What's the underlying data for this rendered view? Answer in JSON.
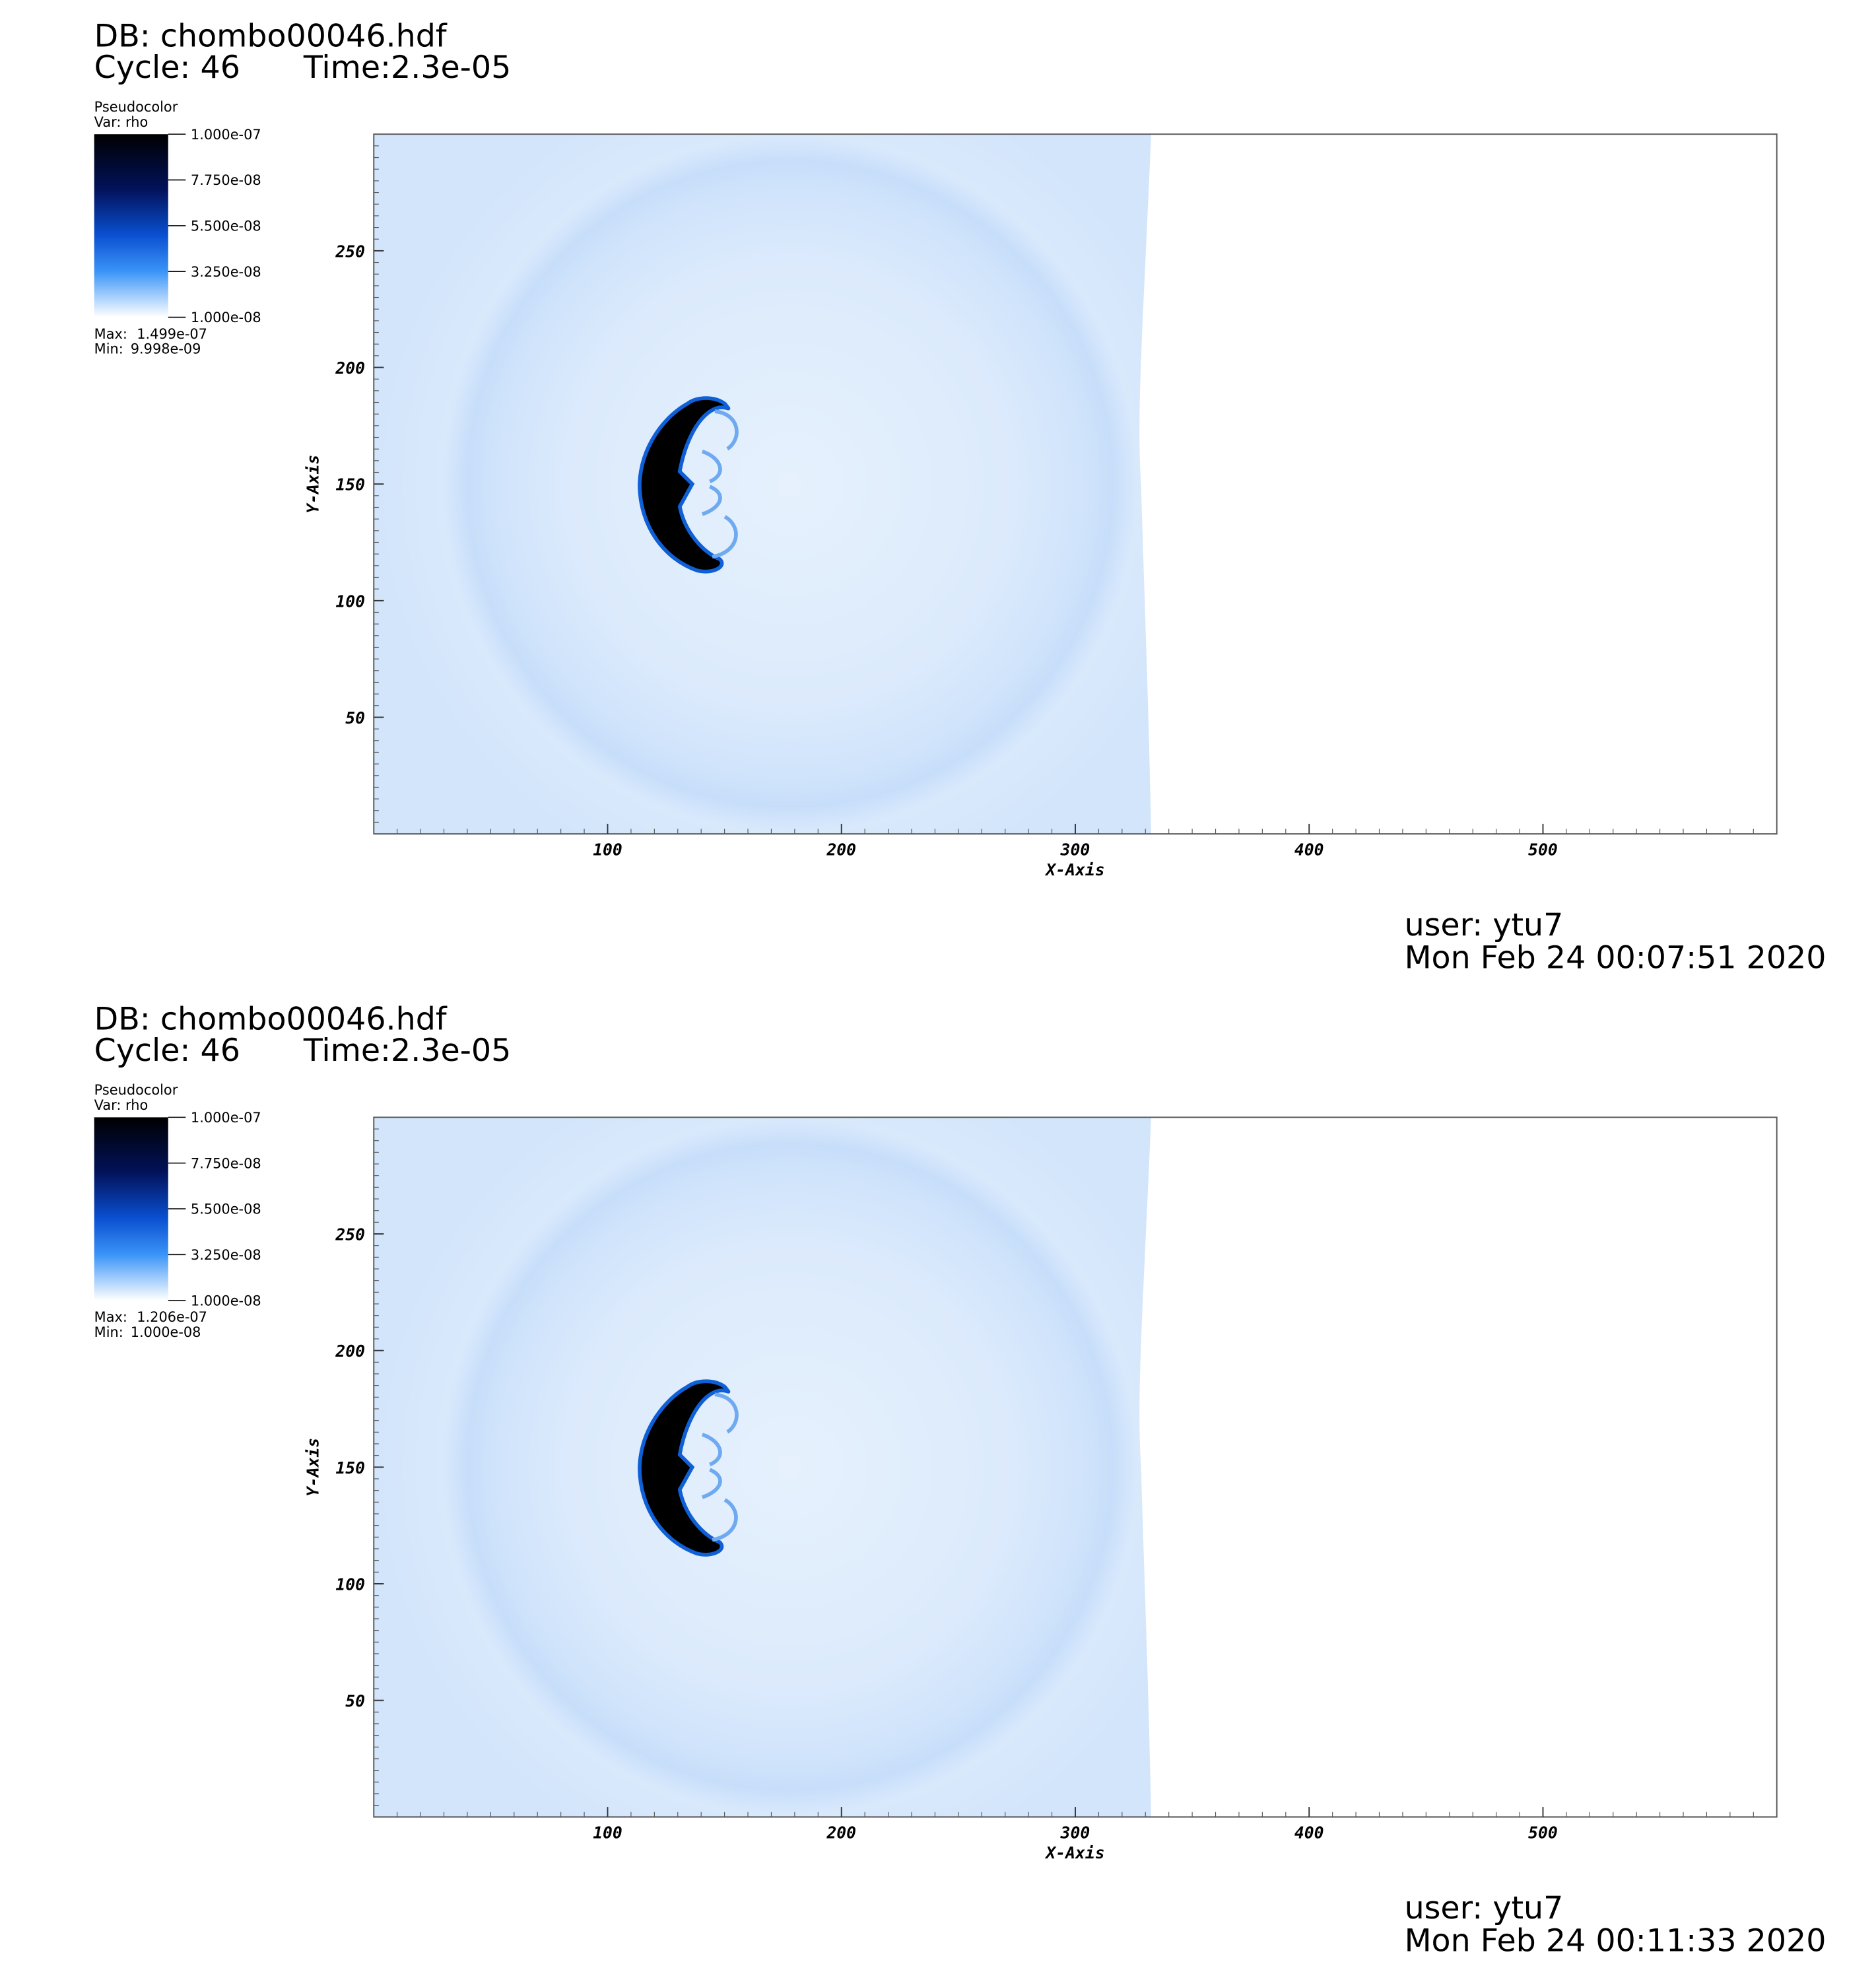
{
  "panels": [
    {
      "db": "DB: chombo00046.hdf",
      "cycle": "Cycle: 46",
      "time": "Time:2.3e-05",
      "legend": {
        "title": "Pseudocolor",
        "var": "Var: rho",
        "ticks": [
          "1.000e-07",
          "7.750e-08",
          "5.500e-08",
          "3.250e-08",
          "1.000e-08"
        ],
        "max_label": "Max:",
        "max": "1.499e-07",
        "min_label": "Min:",
        "min": "9.998e-09"
      },
      "x_label": "X-Axis",
      "y_label": "Y-Axis",
      "xlim": [
        0,
        600
      ],
      "ylim": [
        0,
        300
      ],
      "xticks": [
        100,
        200,
        300,
        400,
        500
      ],
      "yticks": [
        50,
        100,
        150,
        200,
        250
      ],
      "user": "user: ytu7",
      "date": "Mon Feb 24 00:07:51 2020"
    },
    {
      "db": "DB: chombo00046.hdf",
      "cycle": "Cycle: 46",
      "time": "Time:2.3e-05",
      "legend": {
        "title": "Pseudocolor",
        "var": "Var: rho",
        "ticks": [
          "1.000e-07",
          "7.750e-08",
          "5.500e-08",
          "3.250e-08",
          "1.000e-08"
        ],
        "max_label": "Max:",
        "max": "1.206e-07",
        "min_label": "Min:",
        "min": "1.000e-08"
      },
      "x_label": "X-Axis",
      "y_label": "Y-Axis",
      "xlim": [
        0,
        600
      ],
      "ylim": [
        0,
        300
      ],
      "xticks": [
        100,
        200,
        300,
        400,
        500
      ],
      "yticks": [
        50,
        100,
        150,
        200,
        250
      ],
      "user": "user: ytu7",
      "date": "Mon Feb 24 00:11:33 2020"
    }
  ]
}
